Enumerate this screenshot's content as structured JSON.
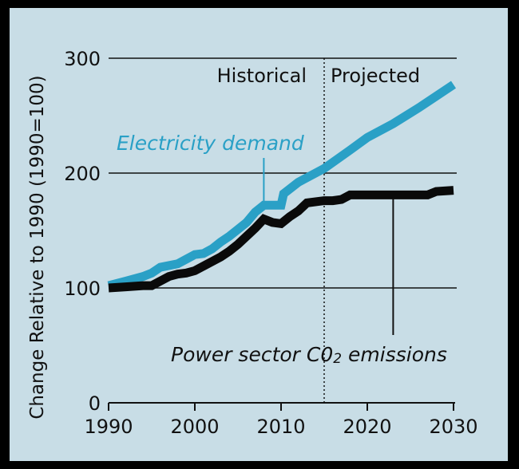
{
  "chart_data": {
    "type": "line",
    "title": "",
    "xlabel": "",
    "ylabel": "Change Relative to 1990 (1990=100)",
    "xlim": [
      1990,
      2030
    ],
    "ylim": [
      0,
      300
    ],
    "x_ticks": [
      "1990",
      "2000",
      "2010",
      "2020",
      "2030"
    ],
    "y_ticks": [
      "0",
      "100",
      "200",
      "300"
    ],
    "grid": "horizontal",
    "divider": {
      "x": 2015,
      "left_label": "Historical",
      "right_label": "Projected"
    },
    "series": [
      {
        "name": "Electricity demand",
        "color": "#2aa0c6",
        "x": [
          1990,
          1992,
          1994,
          1995,
          1996,
          1998,
          1999,
          2000,
          2001,
          2002,
          2003,
          2004,
          2005,
          2006,
          2007,
          2008,
          2009,
          2010,
          2010.3,
          2012,
          2015,
          2018,
          2020,
          2023,
          2026,
          2030
        ],
        "values": [
          102,
          106,
          110,
          113,
          118,
          121,
          125,
          129,
          130,
          134,
          140,
          145,
          151,
          157,
          166,
          172,
          172,
          172,
          182,
          192,
          204,
          220,
          231,
          243,
          257,
          277
        ]
      },
      {
        "name": "Power sector C02 emissions",
        "color": "#0a0a0a",
        "x": [
          1990,
          1992,
          1994,
          1995,
          1996,
          1997,
          1998,
          1999,
          2000,
          2001,
          2002,
          2003,
          2004,
          2005,
          2006,
          2007,
          2008,
          2009,
          2010,
          2011,
          2012,
          2013,
          2015,
          2016,
          2017,
          2018,
          2020,
          2025,
          2027,
          2028,
          2030
        ],
        "values": [
          100,
          101,
          102,
          102,
          106,
          110,
          112,
          113,
          115,
          119,
          123,
          127,
          132,
          138,
          145,
          152,
          160,
          157,
          156,
          162,
          167,
          174,
          176,
          176,
          177,
          181,
          181,
          181,
          181,
          184,
          185
        ]
      }
    ],
    "annotations": [
      {
        "text": "Electricity demand",
        "points_to_year": 2008
      },
      {
        "text": "Power sector C0",
        "subscript": "2",
        "suffix": " emissions",
        "points_to_year": 2023
      }
    ]
  }
}
